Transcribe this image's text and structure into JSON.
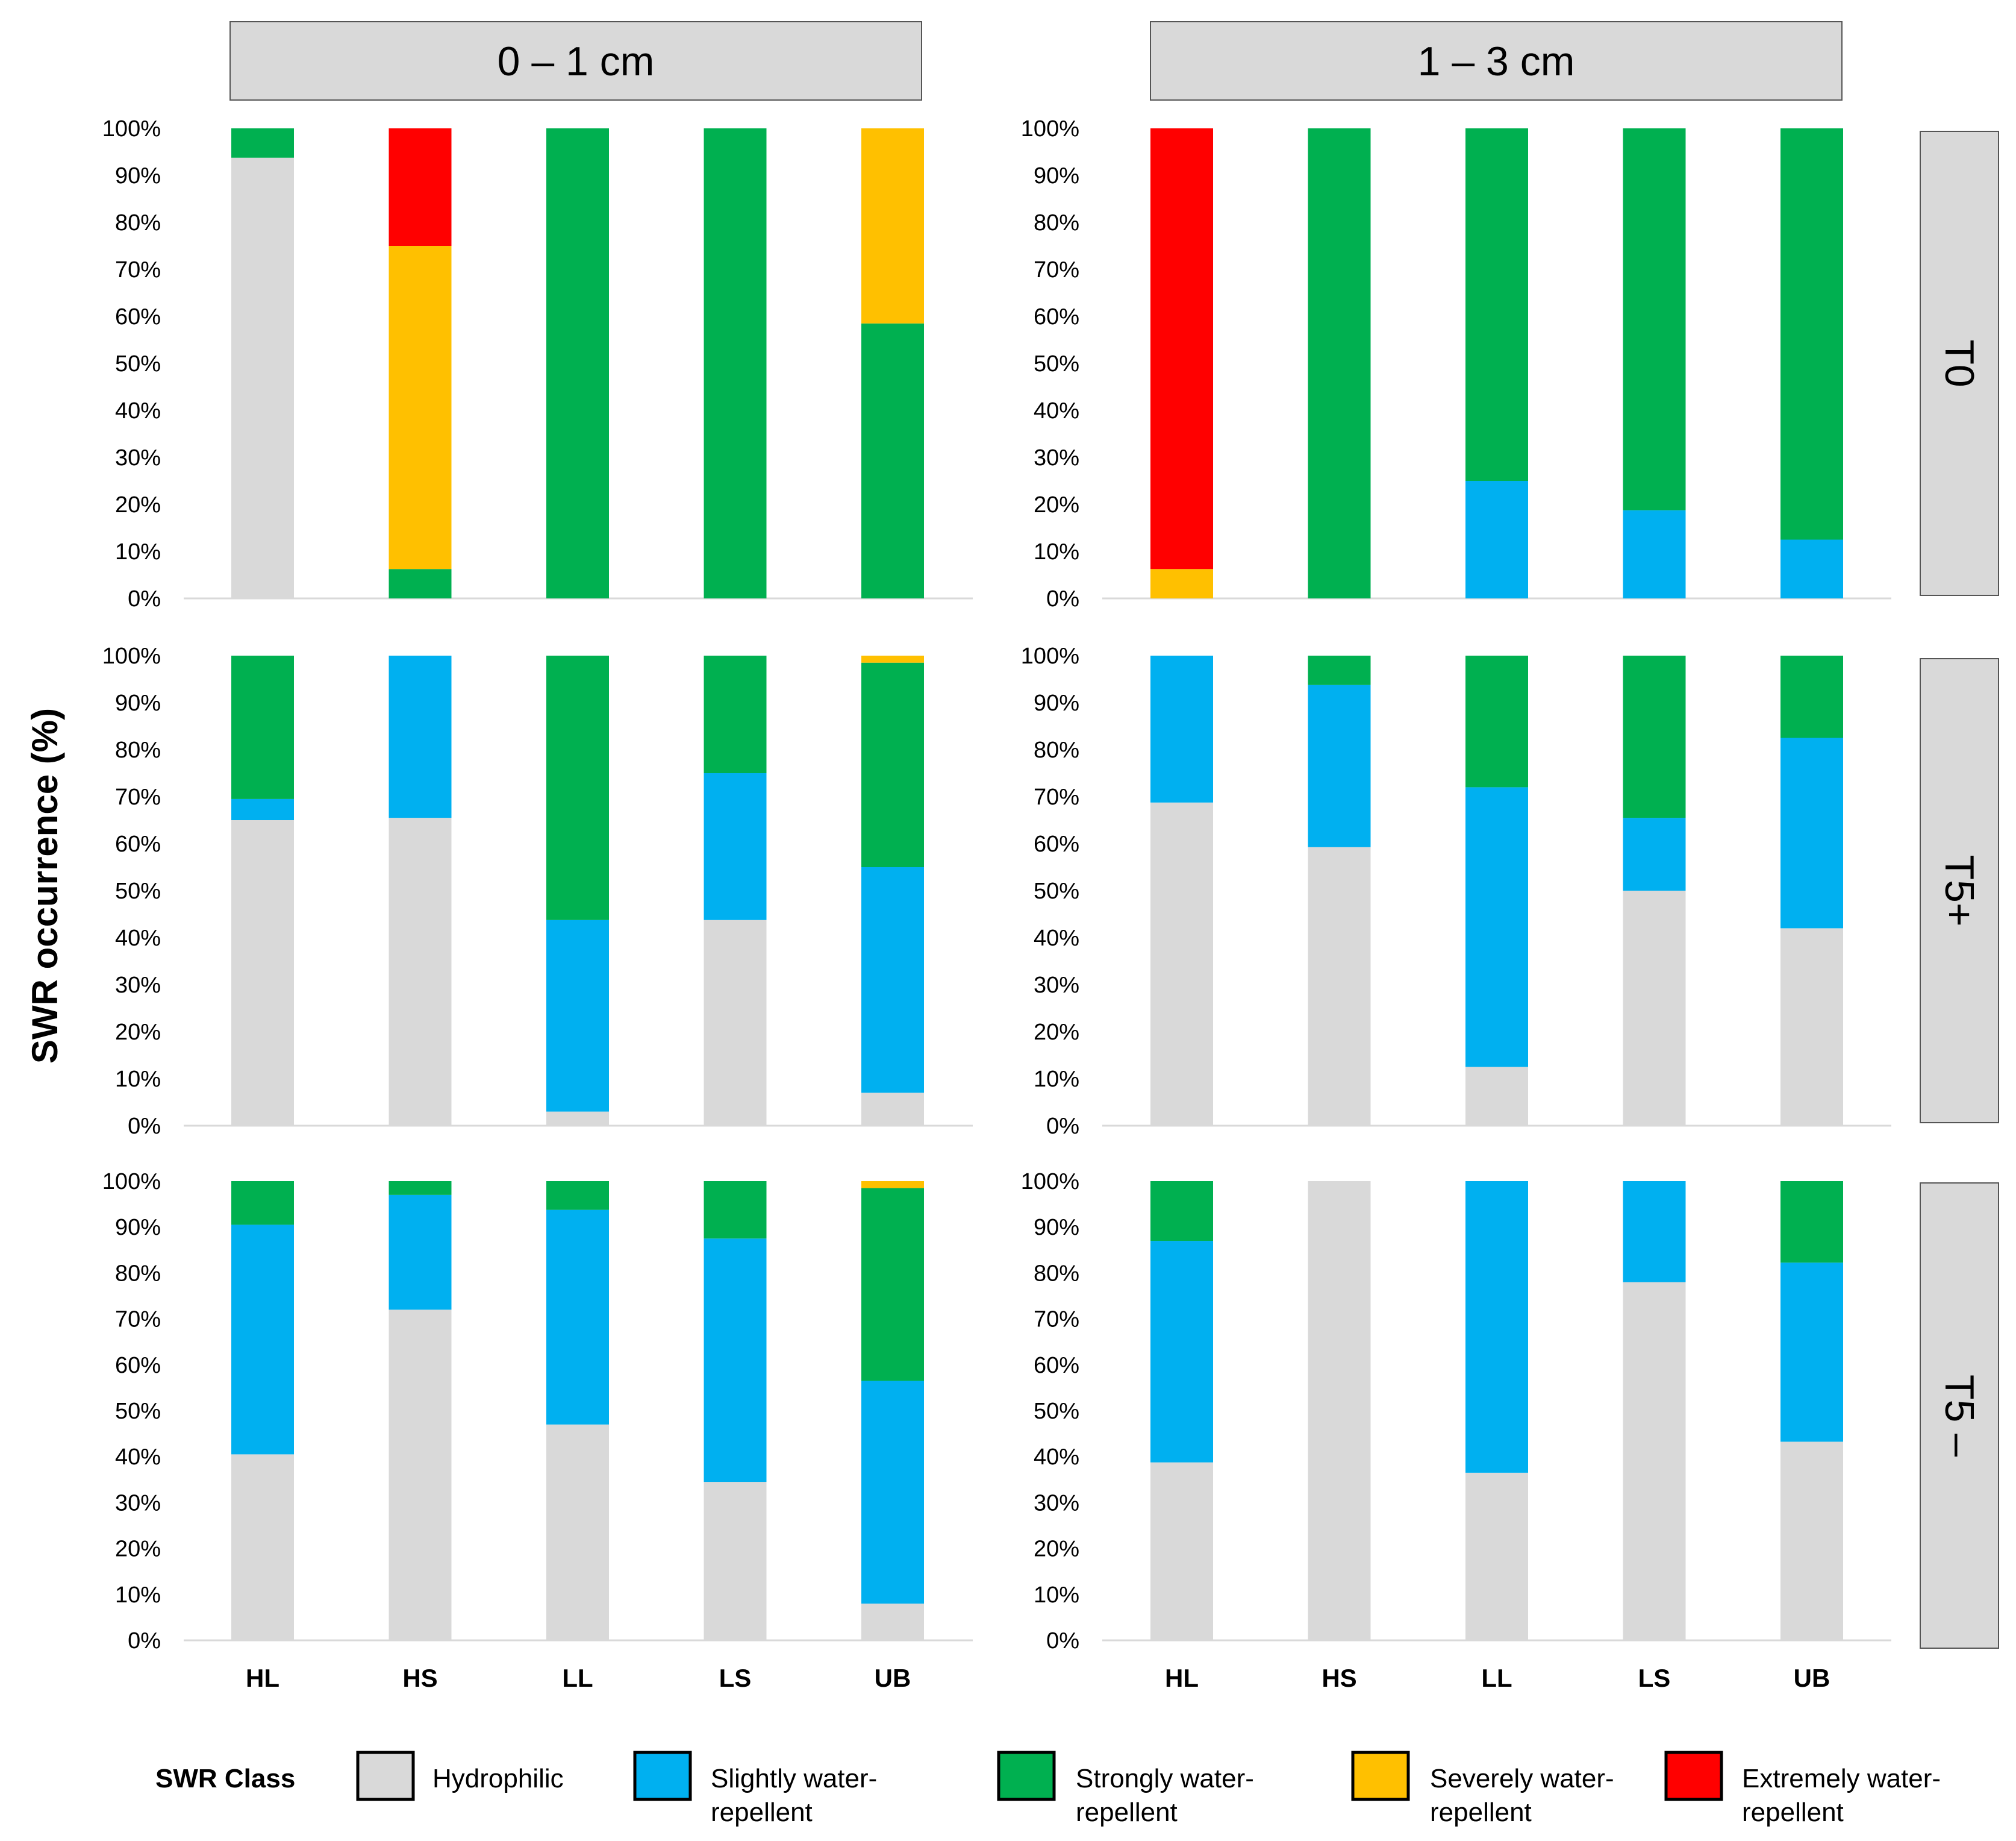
{
  "chart_data": {
    "type": "bar",
    "stacked": true,
    "ylabel": "SWR occurrence (%)",
    "ylim": [
      0,
      100
    ],
    "yticks": [
      "0%",
      "10%",
      "20%",
      "30%",
      "40%",
      "50%",
      "60%",
      "70%",
      "80%",
      "90%",
      "100%"
    ],
    "categories": [
      "HL",
      "HS",
      "LL",
      "LS",
      "UB"
    ],
    "columns": [
      "0 – 1 cm",
      "1 – 3 cm"
    ],
    "rows": [
      "T0",
      "T5+",
      "T5 –"
    ],
    "legend": {
      "title": "SWR Class",
      "items": [
        {
          "key": "hydrophilic",
          "line1": "Hydrophilic",
          "line2": "",
          "color": "#d9d9d9"
        },
        {
          "key": "slightly",
          "line1": "Slightly water-",
          "line2": "repellent",
          "color": "#00b0f0"
        },
        {
          "key": "strongly",
          "line1": "Strongly water-",
          "line2": "repellent",
          "color": "#00b050"
        },
        {
          "key": "severely",
          "line1": "Severely water-",
          "line2": "repellent",
          "color": "#ffc000"
        },
        {
          "key": "extremely",
          "line1": "Extremely water-",
          "line2": "repellent",
          "color": "#ff0000"
        }
      ]
    },
    "panels": [
      {
        "row": "T0",
        "column": "0 – 1 cm",
        "series": [
          {
            "name": "Hydrophilic",
            "values": [
              93.75,
              0,
              0,
              0,
              0
            ]
          },
          {
            "name": "Slightly water-repellent",
            "values": [
              0,
              0,
              0,
              0,
              0
            ]
          },
          {
            "name": "Strongly water-repellent",
            "values": [
              6.25,
              6.25,
              100,
              100,
              58.5
            ]
          },
          {
            "name": "Severely water-repellent",
            "values": [
              0,
              68.75,
              0,
              0,
              41.5
            ]
          },
          {
            "name": "Extremely water-repellent",
            "values": [
              0,
              25,
              0,
              0,
              0
            ]
          }
        ]
      },
      {
        "row": "T0",
        "column": "1 – 3 cm",
        "series": [
          {
            "name": "Hydrophilic",
            "values": [
              0,
              0,
              0,
              0,
              0
            ]
          },
          {
            "name": "Slightly water-repellent",
            "values": [
              0,
              0,
              25,
              18.75,
              12.5
            ]
          },
          {
            "name": "Strongly water-repellent",
            "values": [
              0,
              100,
              75,
              81.25,
              87.5
            ]
          },
          {
            "name": "Severely water-repellent",
            "values": [
              6.25,
              0,
              0,
              0,
              0
            ]
          },
          {
            "name": "Extremely water-repellent",
            "values": [
              93.75,
              0,
              0,
              0,
              0
            ]
          }
        ]
      },
      {
        "row": "T5+",
        "column": "0 – 1 cm",
        "series": [
          {
            "name": "Hydrophilic",
            "values": [
              65,
              65.5,
              3,
              43.75,
              7
            ]
          },
          {
            "name": "Slightly water-repellent",
            "values": [
              4.5,
              34.5,
              40.75,
              31.25,
              48
            ]
          },
          {
            "name": "Strongly water-repellent",
            "values": [
              30.5,
              0,
              56.25,
              25,
              43.5
            ]
          },
          {
            "name": "Severely water-repellent",
            "values": [
              0,
              0,
              0,
              0,
              1.5
            ]
          },
          {
            "name": "Extremely water-repellent",
            "values": [
              0,
              0,
              0,
              0,
              0
            ]
          }
        ]
      },
      {
        "row": "T5+",
        "column": "1 – 3 cm",
        "series": [
          {
            "name": "Hydrophilic",
            "values": [
              68.75,
              59.25,
              12.5,
              50,
              42
            ]
          },
          {
            "name": "Slightly water-repellent",
            "values": [
              31.25,
              34.5,
              59.5,
              15.5,
              40.5
            ]
          },
          {
            "name": "Strongly water-repellent",
            "values": [
              0,
              6.25,
              28,
              34.5,
              17.5
            ]
          },
          {
            "name": "Severely water-repellent",
            "values": [
              0,
              0,
              0,
              0,
              0
            ]
          },
          {
            "name": "Extremely water-repellent",
            "values": [
              0,
              0,
              0,
              0,
              0
            ]
          }
        ]
      },
      {
        "row": "T5 –",
        "column": "0 – 1 cm",
        "series": [
          {
            "name": "Hydrophilic",
            "values": [
              40.5,
              72,
              47,
              34.5,
              8
            ]
          },
          {
            "name": "Slightly water-repellent",
            "values": [
              50,
              25,
              46.75,
              53,
              48.5
            ]
          },
          {
            "name": "Strongly water-repellent",
            "values": [
              9.5,
              3,
              6.25,
              12.5,
              42
            ]
          },
          {
            "name": "Severely water-repellent",
            "values": [
              0,
              0,
              0,
              0,
              1.5
            ]
          },
          {
            "name": "Extremely water-repellent",
            "values": [
              0,
              0,
              0,
              0,
              0
            ]
          }
        ]
      },
      {
        "row": "T5 –",
        "column": "1 – 3 cm",
        "series": [
          {
            "name": "Hydrophilic",
            "values": [
              38.75,
              100,
              36.5,
              78,
              43.25
            ]
          },
          {
            "name": "Slightly water-repellent",
            "values": [
              48.25,
              0,
              63.5,
              22,
              39
            ]
          },
          {
            "name": "Strongly water-repellent",
            "values": [
              13,
              0,
              0,
              0,
              17.75
            ]
          },
          {
            "name": "Severely water-repellent",
            "values": [
              0,
              0,
              0,
              0,
              0
            ]
          },
          {
            "name": "Extremely water-repellent",
            "values": [
              0,
              0,
              0,
              0,
              0
            ]
          }
        ]
      }
    ]
  }
}
